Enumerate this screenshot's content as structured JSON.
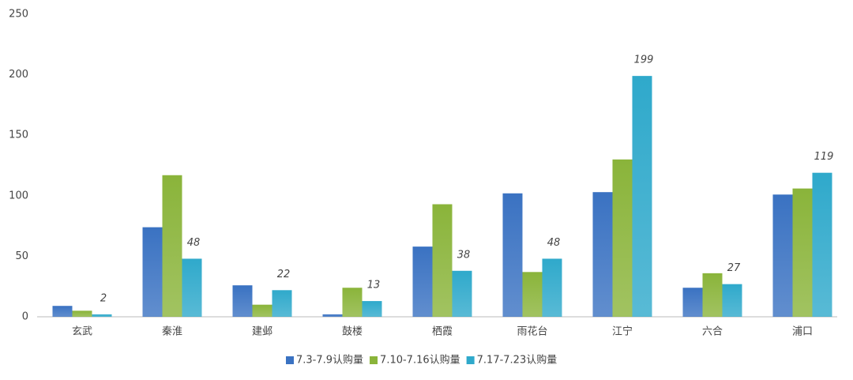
{
  "chart_data": {
    "type": "bar",
    "categories": [
      "玄武",
      "秦淮",
      "建邺",
      "鼓楼",
      "栖霞",
      "雨花台",
      "江宁",
      "六合",
      "浦口"
    ],
    "series": [
      {
        "name": "7.3-7.9认购量",
        "color": "#3a72c2",
        "values": [
          9,
          74,
          26,
          2,
          58,
          102,
          103,
          24,
          101
        ]
      },
      {
        "name": "7.10-7.16认购量",
        "color": "#8ab43a",
        "values": [
          5,
          117,
          10,
          24,
          93,
          37,
          130,
          36,
          106
        ]
      },
      {
        "name": "7.17-7.23认购量",
        "color": "#2fa9cb",
        "values": [
          2,
          48,
          22,
          13,
          38,
          48,
          199,
          27,
          119
        ],
        "data_labels": true
      }
    ],
    "ylim": [
      0,
      250
    ],
    "yticks": [
      0,
      50,
      100,
      150,
      200,
      250
    ],
    "grid": false,
    "legend": "bottom"
  }
}
